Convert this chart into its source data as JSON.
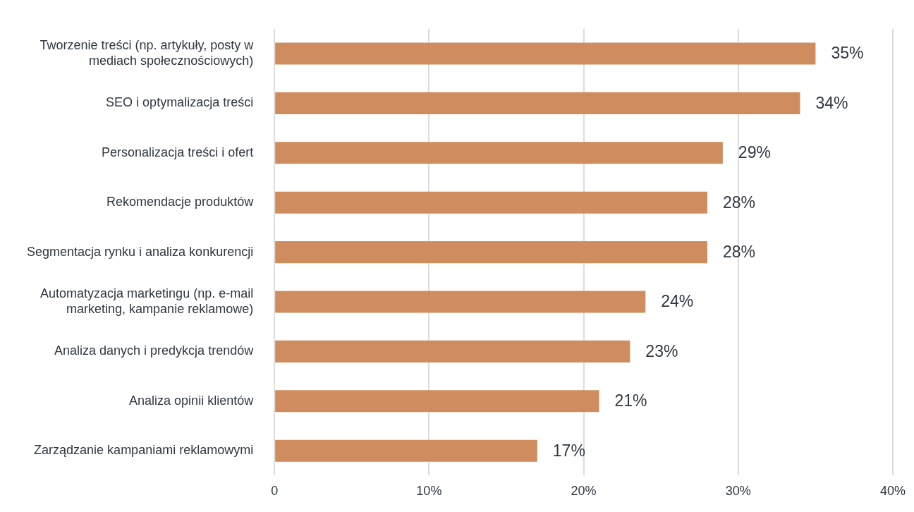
{
  "chart_data": {
    "type": "bar",
    "orientation": "horizontal",
    "categories": [
      "Tworzenie treści (np. artykuły, posty w mediach społecznościowych)",
      "SEO i optymalizacja treści",
      "Personalizacja treści i ofert",
      "Rekomendacje produktów",
      "Segmentacja rynku i analiza konkurencji",
      "Automatyzacja marketingu (np. e-mail marketing, kampanie reklamowe)",
      "Analiza danych i predykcja trendów",
      "Analiza opinii klientów",
      "Zarządzanie kampaniami reklamowymi"
    ],
    "values": [
      35,
      34,
      29,
      28,
      28,
      24,
      23,
      21,
      17
    ],
    "value_labels": [
      "35%",
      "34%",
      "29%",
      "28%",
      "28%",
      "24%",
      "23%",
      "21%",
      "17%"
    ],
    "color": "#cf8c5e",
    "xlim": [
      0,
      40
    ],
    "xticks": [
      0,
      {
        "value": 10,
        "label": "10%"
      },
      {
        "value": 20,
        "label": "20%"
      },
      {
        "value": 30,
        "label": "30%"
      },
      {
        "value": 40,
        "label": "40%"
      }
    ],
    "grid": "x",
    "legend": false
  }
}
